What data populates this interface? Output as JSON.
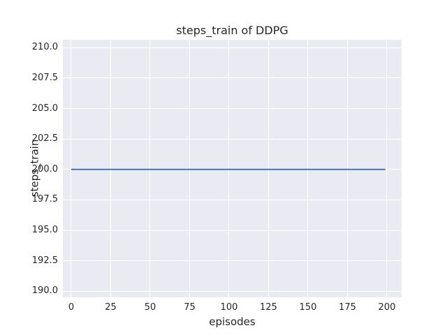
{
  "figure": {
    "background": "#ffffff",
    "plot_background": "#eaeaf2",
    "grid_color": "#ffffff",
    "text_color": "#262626"
  },
  "chart_data": {
    "type": "line",
    "title": "steps_train of DDPG",
    "xlabel": "episodes",
    "ylabel": "steps_train",
    "xlim": [
      -5.3,
      209.3
    ],
    "ylim": [
      189.5,
      210.65
    ],
    "xticks": [
      0,
      25,
      50,
      75,
      100,
      125,
      150,
      175,
      200
    ],
    "xtick_labels": [
      "0",
      "25",
      "50",
      "75",
      "100",
      "125",
      "150",
      "175",
      "200"
    ],
    "yticks": [
      190.0,
      192.5,
      195.0,
      197.5,
      200.0,
      202.5,
      205.0,
      207.5,
      210.0
    ],
    "ytick_labels": [
      "190.0",
      "192.5",
      "195.0",
      "197.5",
      "200.0",
      "202.5",
      "205.0",
      "207.5",
      "210.0"
    ],
    "grid": true,
    "legend": null,
    "series": [
      {
        "name": "steps_train",
        "color": "#4c72b0",
        "linewidth": 2,
        "x": [
          0,
          199
        ],
        "y": [
          200,
          200
        ],
        "note": "constant value 200 for every episode"
      }
    ]
  }
}
